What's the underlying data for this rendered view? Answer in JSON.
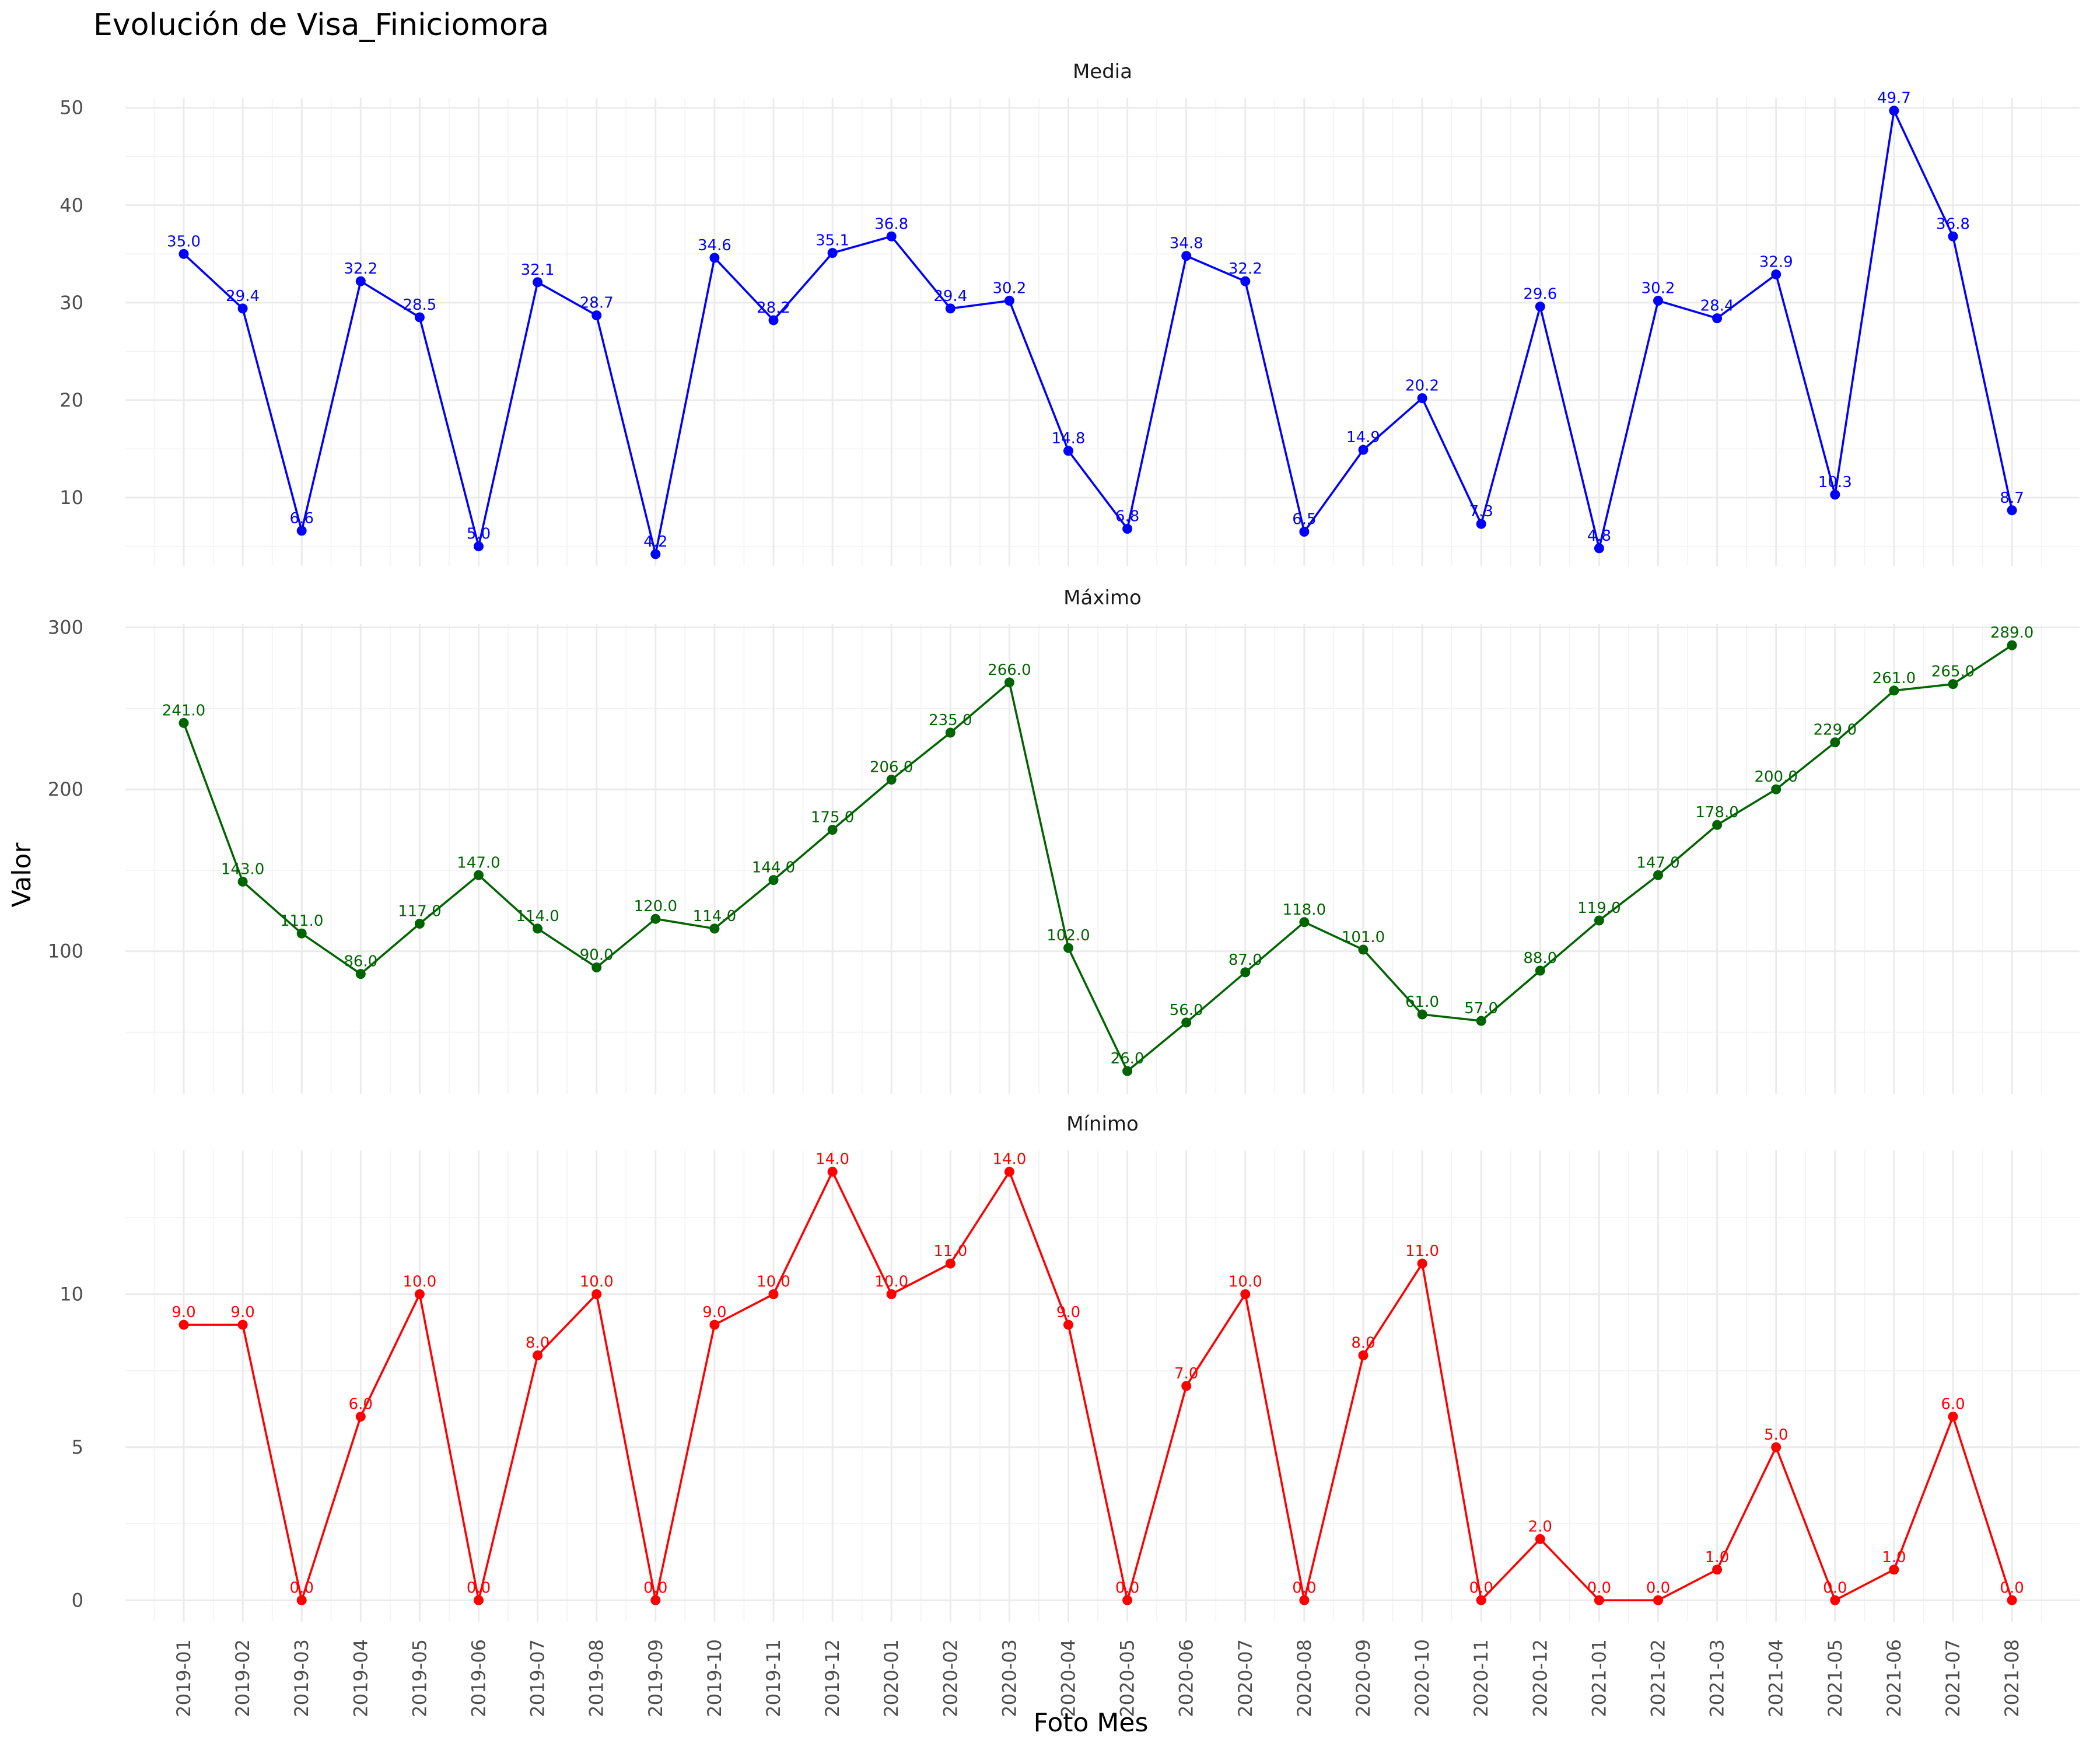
{
  "chart_data": {
    "type": "line",
    "title": "Evolución de Visa_Finiciomora",
    "xlabel": "Foto Mes",
    "ylabel": "Valor",
    "grid": true,
    "legend": "none",
    "categories": [
      "2019-01",
      "2019-02",
      "2019-03",
      "2019-04",
      "2019-05",
      "2019-06",
      "2019-07",
      "2019-08",
      "2019-09",
      "2019-10",
      "2019-11",
      "2019-12",
      "2020-01",
      "2020-02",
      "2020-03",
      "2020-04",
      "2020-05",
      "2020-06",
      "2020-07",
      "2020-08",
      "2020-09",
      "2020-10",
      "2020-11",
      "2020-12",
      "2021-01",
      "2021-02",
      "2021-03",
      "2021-04",
      "2021-05",
      "2021-06",
      "2021-07",
      "2021-08"
    ],
    "panels": [
      {
        "name": "Media",
        "color": "#0000FF",
        "ylim": [
          3.0,
          51.0
        ],
        "yticks": [
          10,
          20,
          30,
          40,
          50
        ],
        "values": [
          35.0,
          29.4,
          6.6,
          32.2,
          28.5,
          5.0,
          32.1,
          28.7,
          4.2,
          34.6,
          28.2,
          35.1,
          36.8,
          29.4,
          30.2,
          14.8,
          6.8,
          34.8,
          32.2,
          6.5,
          14.9,
          20.2,
          7.3,
          29.6,
          4.8,
          30.2,
          28.4,
          32.9,
          10.3,
          49.7,
          36.8,
          8.7
        ],
        "labels": [
          "35.0",
          "29.4",
          "6.6",
          "32.2",
          "28.5",
          "5.0",
          "32.1",
          "28.7",
          "4.2",
          "34.6",
          "28.2",
          "35.1",
          "36.8",
          "29.4",
          "30.2",
          "14.8",
          "6.8",
          "34.8",
          "32.2",
          "6.5",
          "14.9",
          "20.2",
          "7.3",
          "29.6",
          "4.8",
          "30.2",
          "28.4",
          "32.9",
          "10.3",
          "49.7",
          "36.8",
          "8.7"
        ],
        "ytick_labels": [
          "10",
          "20",
          "30",
          "40",
          "50"
        ]
      },
      {
        "name": "Máximo",
        "color": "#006400",
        "ylim": [
          12.0,
          302.0
        ],
        "yticks": [
          100,
          200,
          300
        ],
        "values": [
          241.0,
          143.0,
          111.0,
          86.0,
          117.0,
          147.0,
          114.0,
          90.0,
          120.0,
          114.0,
          144.0,
          175.0,
          206.0,
          235.0,
          266.0,
          102.0,
          26.0,
          56.0,
          87.0,
          118.0,
          101.0,
          61.0,
          57.0,
          88.0,
          119.0,
          147.0,
          178.0,
          200.0,
          229.0,
          261.0,
          265.0,
          289.0
        ],
        "labels": [
          "241.0",
          "143.0",
          "111.0",
          "86.0",
          "117.0",
          "147.0",
          "114.0",
          "90.0",
          "120.0",
          "114.0",
          "144.0",
          "175.0",
          "206.0",
          "235.0",
          "266.0",
          "102.0",
          "26.0",
          "56.0",
          "87.0",
          "118.0",
          "101.0",
          "61.0",
          "57.0",
          "88.0",
          "119.0",
          "147.0",
          "178.0",
          "200.0",
          "229.0",
          "261.0",
          "265.0",
          "289.0"
        ],
        "ytick_labels": [
          "100",
          "200",
          "300"
        ]
      },
      {
        "name": "Mínimo",
        "color": "#FF0000",
        "ylim": [
          -0.7,
          14.7
        ],
        "yticks": [
          0,
          5,
          10
        ],
        "values": [
          9.0,
          9.0,
          0.0,
          6.0,
          10.0,
          0.0,
          8.0,
          10.0,
          0.0,
          9.0,
          10.0,
          14.0,
          10.0,
          11.0,
          14.0,
          9.0,
          0.0,
          7.0,
          10.0,
          0.0,
          8.0,
          11.0,
          0.0,
          2.0,
          0.0,
          0.0,
          1.0,
          5.0,
          0.0,
          1.0,
          6.0,
          0.0
        ],
        "labels": [
          "9.0",
          "9.0",
          "0.0",
          "6.0",
          "10.0",
          "0.0",
          "8.0",
          "10.0",
          "0.0",
          "9.0",
          "10.0",
          "14.0",
          "10.0",
          "11.0",
          "14.0",
          "9.0",
          "0.0",
          "7.0",
          "10.0",
          "0.0",
          "8.0",
          "11.0",
          "0.0",
          "2.0",
          "0.0",
          "0.0",
          "1.0",
          "5.0",
          "0.0",
          "1.0",
          "6.0",
          "0.0"
        ],
        "ytick_labels": [
          "0",
          "5",
          "10"
        ]
      }
    ]
  }
}
